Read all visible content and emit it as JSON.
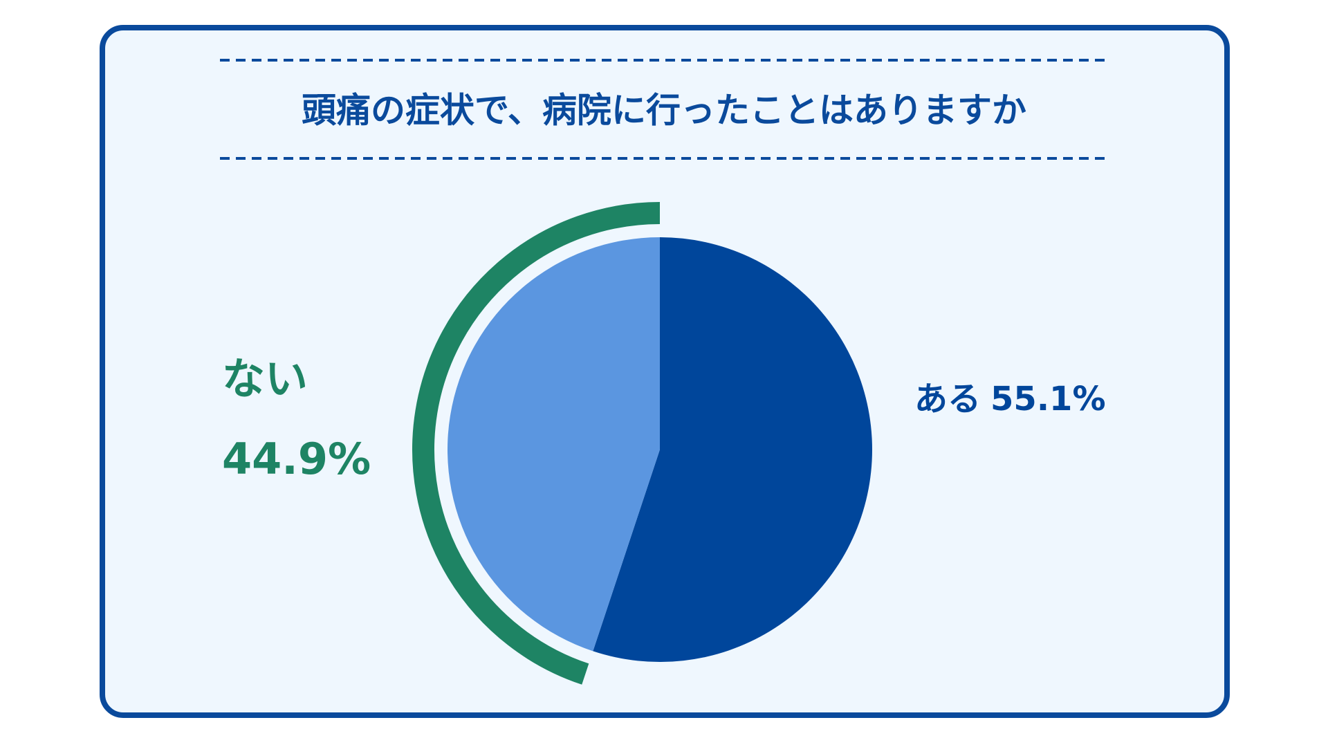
{
  "chart_data": {
    "type": "pie",
    "title": "頭痛の症状で、病院に行ったことはありますか",
    "categories": [
      "ある",
      "ない"
    ],
    "values": [
      55.1,
      44.9
    ],
    "value_labels": [
      "55.1%",
      "44.9%"
    ],
    "colors": [
      "#00469b",
      "#5b96e0"
    ],
    "label_colors": [
      "#00469b",
      "#1e8464"
    ],
    "highlight": "ない",
    "highlight_color": "#1e8464"
  }
}
